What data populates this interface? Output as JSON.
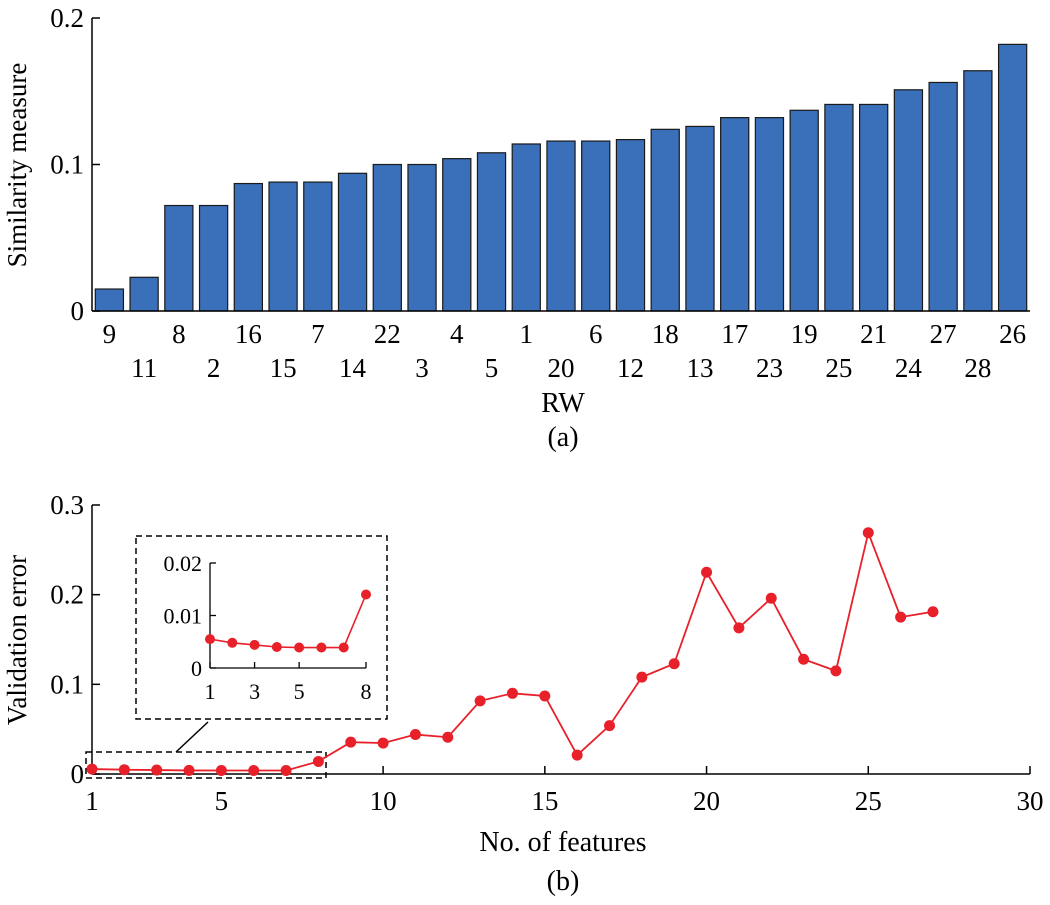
{
  "chart_data": [
    {
      "type": "bar",
      "title": "",
      "caption": "(a)",
      "xlabel": "RW",
      "ylabel": "Similarity measure",
      "ylim": [
        0,
        0.2
      ],
      "yticks": [
        "0",
        "0.1",
        "0.2"
      ],
      "categories": [
        "9",
        "11",
        "8",
        "2",
        "16",
        "15",
        "7",
        "14",
        "22",
        "3",
        "4",
        "5",
        "1",
        "20",
        "6",
        "12",
        "18",
        "13",
        "17",
        "23",
        "19",
        "25",
        "21",
        "24",
        "27",
        "28",
        "26"
      ],
      "values": [
        0.015,
        0.023,
        0.072,
        0.072,
        0.087,
        0.088,
        0.088,
        0.094,
        0.1,
        0.1,
        0.104,
        0.108,
        0.114,
        0.116,
        0.116,
        0.117,
        0.124,
        0.126,
        0.132,
        0.132,
        0.137,
        0.141,
        0.141,
        0.151,
        0.156,
        0.164,
        0.182
      ],
      "bar_color": "#3A6FB9"
    },
    {
      "type": "line",
      "title": "",
      "caption": "(b)",
      "xlabel": "No. of features",
      "ylabel": "Validation error",
      "xlim": [
        1,
        30
      ],
      "ylim": [
        0,
        0.3
      ],
      "xticks": [
        "1",
        "5",
        "10",
        "15",
        "20",
        "25",
        "30"
      ],
      "yticks": [
        "0",
        "0.1",
        "0.2",
        "0.3"
      ],
      "series": [
        {
          "x": [
            1,
            2,
            3,
            4,
            5,
            6,
            7,
            8,
            9,
            10,
            11,
            12,
            13,
            14,
            15,
            16,
            17,
            18,
            19,
            20,
            21,
            22,
            23,
            24,
            25,
            26,
            27
          ],
          "y": [
            0.0055,
            0.0048,
            0.0044,
            0.004,
            0.0039,
            0.0039,
            0.0039,
            0.014,
            0.0355,
            0.0345,
            0.044,
            0.041,
            0.0815,
            0.09,
            0.087,
            0.021,
            0.054,
            0.108,
            0.123,
            0.225,
            0.163,
            0.196,
            0.128,
            0.115,
            0.269,
            0.175,
            0.181
          ],
          "color": "#E8202A"
        }
      ],
      "inset": {
        "xlim": [
          1,
          8
        ],
        "ylim": [
          0,
          0.02
        ],
        "xticks": [
          "1",
          "3",
          "5",
          "8"
        ],
        "yticks": [
          "0",
          "0.01",
          "0.02"
        ],
        "x": [
          1,
          2,
          3,
          4,
          5,
          6,
          7,
          8
        ],
        "y": [
          0.0055,
          0.0048,
          0.0044,
          0.004,
          0.0039,
          0.0039,
          0.0039,
          0.014
        ]
      }
    }
  ]
}
